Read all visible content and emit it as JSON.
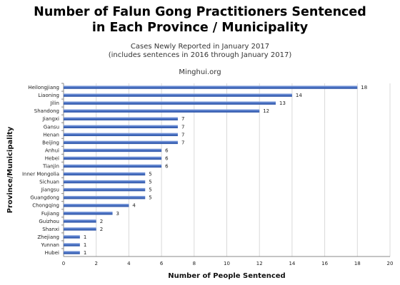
{
  "chart_data": {
    "type": "bar",
    "orientation": "horizontal",
    "title_line1": "Number of Falun Gong Practitioners Sentenced",
    "title_line2": "in Each Province / Municipality",
    "subtitle_line1": "Cases Newly Reported in January 2017",
    "subtitle_line2": "(includes sentences in 2016 through January 2017)",
    "source": "Minghui.org",
    "xlabel": "Number of People Sentenced",
    "ylabel": "Province/Municipality",
    "xlim": [
      0,
      20
    ],
    "xticks": [
      "0",
      "2",
      "4",
      "6",
      "8",
      "10",
      "12",
      "14",
      "16",
      "18",
      "20"
    ],
    "categories": [
      "Heilongjiang",
      "Liaoning",
      "Jilin",
      "Shandong",
      "Jiangxi",
      "Gansu",
      "Henan",
      "Beijing",
      "Anhui",
      "Hebei",
      "Tianjin",
      "Inner Mongolia",
      "Sichuan",
      "Jiangsu",
      "Guangdong",
      "Chongqing",
      "Fujiang",
      "Guizhou",
      "Shanxi",
      "Zhejiang",
      "Yunnan",
      "Hubei"
    ],
    "values": [
      18,
      14,
      13,
      12,
      7,
      7,
      7,
      7,
      6,
      6,
      6,
      5,
      5,
      5,
      5,
      4,
      3,
      2,
      2,
      1,
      1,
      1
    ],
    "value_labels": [
      "18",
      "14",
      "13",
      "12",
      "7",
      "7",
      "7",
      "7",
      "6",
      "6",
      "6",
      "5",
      "5",
      "5",
      "5",
      "4",
      "3",
      "2",
      "2",
      "1",
      "1",
      "1"
    ],
    "grid": true,
    "legend": "none",
    "bar_color": "#4a72c4"
  }
}
